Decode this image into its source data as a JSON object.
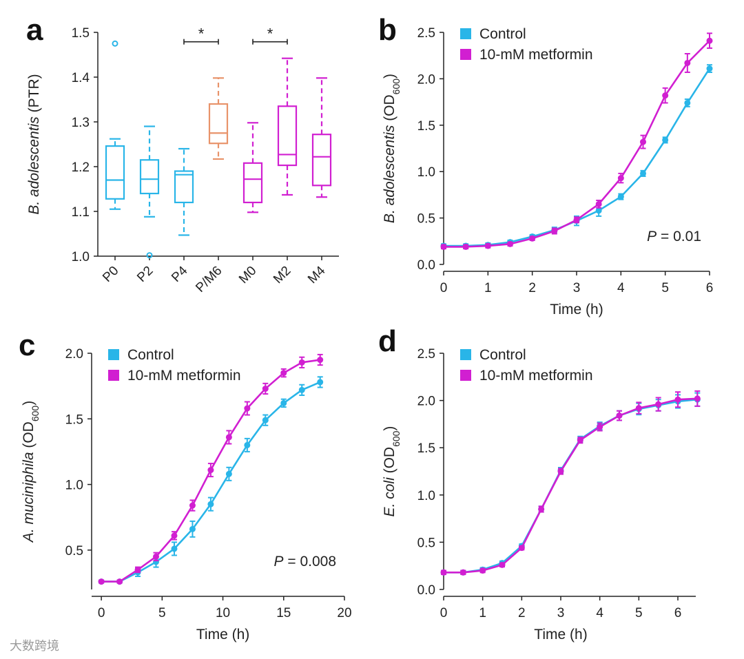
{
  "chart_data": [
    {
      "id": "a",
      "type": "box",
      "panel_letter": "a",
      "ylabel_italic": "B. adolescentis",
      "ylabel_rest": " (PTR)",
      "ylim": [
        1.0,
        1.5
      ],
      "yticks": [
        "1.0",
        "1.1",
        "1.2",
        "1.3",
        "1.4",
        "1.5"
      ],
      "categories": [
        "P0",
        "P2",
        "P4",
        "P/M6",
        "M0",
        "M2",
        "M4"
      ],
      "colors": [
        "#29b5e8",
        "#29b5e8",
        "#29b5e8",
        "#e8936a",
        "#d11fd1",
        "#d11fd1",
        "#d11fd1"
      ],
      "boxes": [
        {
          "whisker_low": 1.105,
          "q1": 1.128,
          "median": 1.17,
          "q3": 1.246,
          "whisker_high": 1.262,
          "outliers": [
            1.475
          ]
        },
        {
          "whisker_low": 1.088,
          "q1": 1.14,
          "median": 1.172,
          "q3": 1.215,
          "whisker_high": 1.29,
          "outliers": [
            1.002
          ]
        },
        {
          "whisker_low": 1.047,
          "q1": 1.12,
          "median": 1.182,
          "q3": 1.19,
          "whisker_high": 1.24,
          "outliers": []
        },
        {
          "whisker_low": 1.217,
          "q1": 1.252,
          "median": 1.275,
          "q3": 1.34,
          "whisker_high": 1.398,
          "outliers": []
        },
        {
          "whisker_low": 1.098,
          "q1": 1.12,
          "median": 1.172,
          "q3": 1.208,
          "whisker_high": 1.298,
          "outliers": []
        },
        {
          "whisker_low": 1.137,
          "q1": 1.203,
          "median": 1.227,
          "q3": 1.335,
          "whisker_high": 1.442,
          "outliers": []
        },
        {
          "whisker_low": 1.132,
          "q1": 1.158,
          "median": 1.222,
          "q3": 1.272,
          "whisker_high": 1.398,
          "outliers": []
        }
      ],
      "significance": [
        {
          "from": "P4",
          "to": "P/M6",
          "label": "*",
          "y": 1.479
        },
        {
          "from": "M0",
          "to": "M2",
          "label": "*",
          "y": 1.479
        }
      ]
    },
    {
      "id": "b",
      "type": "line",
      "panel_letter": "b",
      "ylabel_italic": "B. adolescentis",
      "ylabel_rest": " (OD",
      "ylabel_sub": "600",
      "ylabel_close": ")",
      "xlabel": "Time (h)",
      "xlim": [
        0,
        6
      ],
      "ylim": [
        0,
        2.5
      ],
      "xticks": [
        "0",
        "1",
        "2",
        "3",
        "4",
        "5",
        "6"
      ],
      "yticks": [
        "0.0",
        "0.5",
        "1.0",
        "1.5",
        "2.0",
        "2.5"
      ],
      "legend": {
        "position": "top-left"
      },
      "pvalue": {
        "label": "P",
        "text": " = 0.01"
      },
      "x": [
        0,
        0.5,
        1,
        1.5,
        2,
        2.5,
        3,
        3.5,
        4,
        4.5,
        5,
        5.5,
        6
      ],
      "series": [
        {
          "name": "Control",
          "color": "#29b5e8",
          "values": [
            0.2,
            0.2,
            0.21,
            0.24,
            0.3,
            0.37,
            0.47,
            0.58,
            0.73,
            0.98,
            1.34,
            1.74,
            2.11
          ],
          "err": [
            0.02,
            0.02,
            0.02,
            0.02,
            0.02,
            0.03,
            0.05,
            0.06,
            0.03,
            0.03,
            0.03,
            0.04,
            0.04
          ]
        },
        {
          "name": "10-mM metformin",
          "color": "#d11fd1",
          "values": [
            0.19,
            0.19,
            0.2,
            0.22,
            0.28,
            0.36,
            0.48,
            0.65,
            0.93,
            1.32,
            1.82,
            2.17,
            2.41
          ],
          "err": [
            0.02,
            0.02,
            0.02,
            0.02,
            0.02,
            0.03,
            0.03,
            0.04,
            0.05,
            0.07,
            0.08,
            0.1,
            0.08
          ]
        }
      ]
    },
    {
      "id": "c",
      "type": "line",
      "panel_letter": "c",
      "ylabel_italic": "A. muciniphila",
      "ylabel_rest": " (OD",
      "ylabel_sub": "600",
      "ylabel_close": ")",
      "xlabel": "Time (h)",
      "xlim": [
        -0.8,
        20
      ],
      "ylim": [
        0.2,
        2.0
      ],
      "xticks": [
        "0",
        "5",
        "10",
        "15",
        "20"
      ],
      "yticks": [
        "0.5",
        "1.0",
        "1.5",
        "2.0"
      ],
      "legend": {
        "position": "top-left"
      },
      "pvalue": {
        "label": "P",
        "text": " = 0.008"
      },
      "x": [
        0,
        1.5,
        3,
        4.5,
        6,
        7.5,
        9,
        10.5,
        12,
        13.5,
        15,
        16.5,
        18
      ],
      "series": [
        {
          "name": "Control",
          "color": "#29b5e8",
          "values": [
            0.26,
            0.26,
            0.33,
            0.41,
            0.51,
            0.66,
            0.85,
            1.08,
            1.3,
            1.49,
            1.62,
            1.72,
            1.78
          ],
          "err": [
            0.01,
            0.01,
            0.03,
            0.04,
            0.05,
            0.06,
            0.05,
            0.05,
            0.05,
            0.04,
            0.03,
            0.04,
            0.04
          ]
        },
        {
          "name": "10-mM metformin",
          "color": "#d11fd1",
          "values": [
            0.26,
            0.26,
            0.35,
            0.45,
            0.61,
            0.84,
            1.11,
            1.36,
            1.58,
            1.73,
            1.85,
            1.93,
            1.95
          ],
          "err": [
            0.01,
            0.01,
            0.02,
            0.03,
            0.03,
            0.04,
            0.05,
            0.05,
            0.05,
            0.04,
            0.03,
            0.04,
            0.04
          ]
        }
      ]
    },
    {
      "id": "d",
      "type": "line",
      "panel_letter": "d",
      "ylabel_italic": "E. coli",
      "ylabel_rest": " (OD",
      "ylabel_sub": "600",
      "ylabel_close": ")",
      "xlabel": "Time (h)",
      "xlim": [
        0,
        6.6
      ],
      "ylim": [
        0,
        2.5
      ],
      "xticks": [
        "0",
        "1",
        "2",
        "3",
        "4",
        "5",
        "6"
      ],
      "yticks": [
        "0.0",
        "0.5",
        "1.0",
        "1.5",
        "2.0",
        "2.5"
      ],
      "legend": {
        "position": "top-left"
      },
      "x": [
        0,
        0.5,
        1,
        1.5,
        2,
        2.5,
        3,
        3.5,
        4,
        4.5,
        5,
        5.5,
        6,
        6.5
      ],
      "series": [
        {
          "name": "Control",
          "color": "#29b5e8",
          "values": [
            0.18,
            0.18,
            0.21,
            0.28,
            0.46,
            0.85,
            1.26,
            1.59,
            1.73,
            1.84,
            1.91,
            1.95,
            1.99,
            2.01
          ],
          "err": [
            0.02,
            0.02,
            0.02,
            0.02,
            0.02,
            0.03,
            0.03,
            0.03,
            0.04,
            0.05,
            0.06,
            0.06,
            0.07,
            0.07
          ]
        },
        {
          "name": "10-mM metformin",
          "color": "#d11fd1",
          "values": [
            0.18,
            0.18,
            0.2,
            0.26,
            0.44,
            0.85,
            1.25,
            1.58,
            1.72,
            1.84,
            1.92,
            1.96,
            2.01,
            2.02
          ],
          "err": [
            0.02,
            0.02,
            0.02,
            0.02,
            0.02,
            0.03,
            0.03,
            0.03,
            0.04,
            0.05,
            0.06,
            0.07,
            0.08,
            0.08
          ]
        }
      ]
    }
  ],
  "watermark": "大数跨境"
}
